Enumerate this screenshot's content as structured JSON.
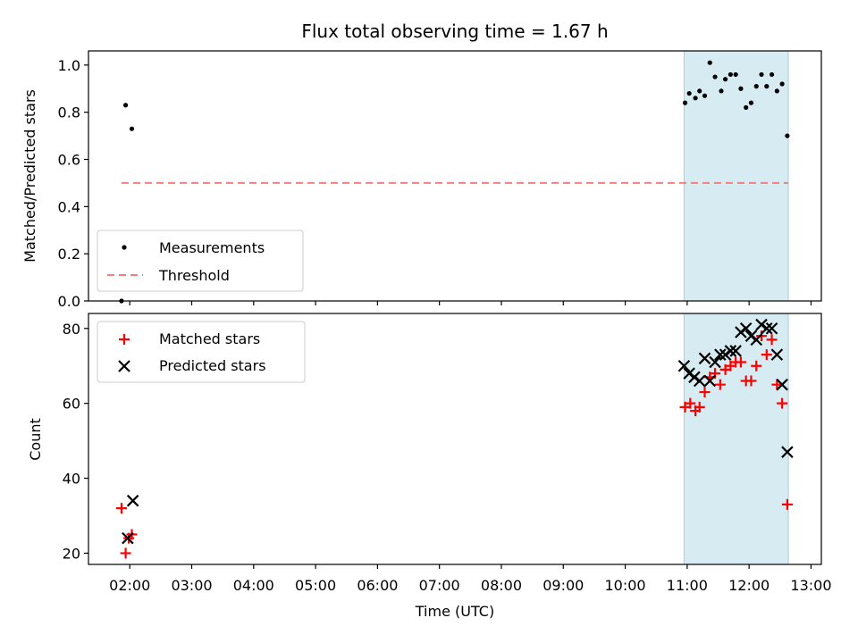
{
  "chart_data": [
    {
      "type": "scatter",
      "title": "Flux total observing time = 1.67 h",
      "xlabel": "",
      "ylabel": "Matched/Predicted stars",
      "xlim": [
        "01:20",
        "13:10"
      ],
      "ylim": [
        0,
        1.06
      ],
      "yticks": [
        0.0,
        0.2,
        0.4,
        0.6,
        0.8,
        1.0
      ],
      "ytick_labels": [
        "0.0",
        "0.2",
        "0.4",
        "0.6",
        "0.8",
        "1.0"
      ],
      "grid": false,
      "legend": "bottom-left",
      "shaded_region": {
        "x_start": "10:57",
        "x_end": "12:38",
        "color": "#add8e6"
      },
      "series": [
        {
          "name": "Measurements",
          "marker": "dot",
          "color": "#000000",
          "x": [
            "01:52",
            "01:56",
            "02:02",
            "10:58",
            "11:02",
            "11:08",
            "11:12",
            "11:17",
            "11:22",
            "11:27",
            "11:33",
            "11:37",
            "11:42",
            "11:47",
            "11:52",
            "11:57",
            "12:02",
            "12:07",
            "12:12",
            "12:17",
            "12:22",
            "12:27",
            "12:32",
            "12:37"
          ],
          "y": [
            0.0,
            0.83,
            0.73,
            0.84,
            0.88,
            0.86,
            0.89,
            0.87,
            1.01,
            0.95,
            0.89,
            0.94,
            0.96,
            0.96,
            0.9,
            0.82,
            0.84,
            0.91,
            0.96,
            0.91,
            0.96,
            0.89,
            0.92,
            0.7
          ]
        },
        {
          "name": "Threshold",
          "marker": "dashed-line",
          "color": "#f08080",
          "x": [
            "01:52",
            "12:38"
          ],
          "y": [
            0.5,
            0.5
          ]
        }
      ]
    },
    {
      "type": "scatter",
      "title": "",
      "xlabel": "Time (UTC)",
      "ylabel": "Count",
      "xlim": [
        "01:20",
        "13:10"
      ],
      "ylim": [
        17,
        84
      ],
      "yticks": [
        20,
        40,
        60,
        80
      ],
      "ytick_labels": [
        "20",
        "40",
        "60",
        "80"
      ],
      "xticks": [
        "02:00",
        "03:00",
        "04:00",
        "05:00",
        "06:00",
        "07:00",
        "08:00",
        "09:00",
        "10:00",
        "11:00",
        "12:00",
        "13:00"
      ],
      "grid": false,
      "legend": "top-left",
      "shaded_region": {
        "x_start": "10:57",
        "x_end": "12:38",
        "color": "#add8e6"
      },
      "series": [
        {
          "name": "Matched stars",
          "marker": "plus",
          "color": "#ff0000",
          "x": [
            "01:52",
            "01:56",
            "01:59",
            "02:02",
            "10:58",
            "11:03",
            "11:08",
            "11:12",
            "11:17",
            "11:22",
            "11:27",
            "11:32",
            "11:37",
            "11:42",
            "11:47",
            "11:52",
            "11:57",
            "12:02",
            "12:07",
            "12:12",
            "12:17",
            "12:22",
            "12:27",
            "12:32",
            "12:37"
          ],
          "y": [
            32,
            20,
            24,
            25,
            59,
            60,
            58,
            59,
            63,
            67,
            68,
            65,
            69,
            70,
            71,
            71,
            66,
            66,
            70,
            78,
            73,
            77,
            65,
            60,
            33
          ]
        },
        {
          "name": "Predicted stars",
          "marker": "x",
          "color": "#000000",
          "x": [
            "01:58",
            "02:03",
            "10:57",
            "11:02",
            "11:07",
            "11:12",
            "11:17",
            "11:22",
            "11:27",
            "11:32",
            "11:37",
            "11:42",
            "11:47",
            "11:52",
            "11:57",
            "12:02",
            "12:07",
            "12:12",
            "12:17",
            "12:22",
            "12:27",
            "12:32",
            "12:37"
          ],
          "y": [
            24,
            34,
            70,
            68,
            67,
            66,
            72,
            66,
            71,
            73,
            73,
            74,
            74,
            79,
            80,
            78,
            77,
            81,
            80,
            80,
            73,
            65,
            47
          ]
        }
      ]
    }
  ]
}
